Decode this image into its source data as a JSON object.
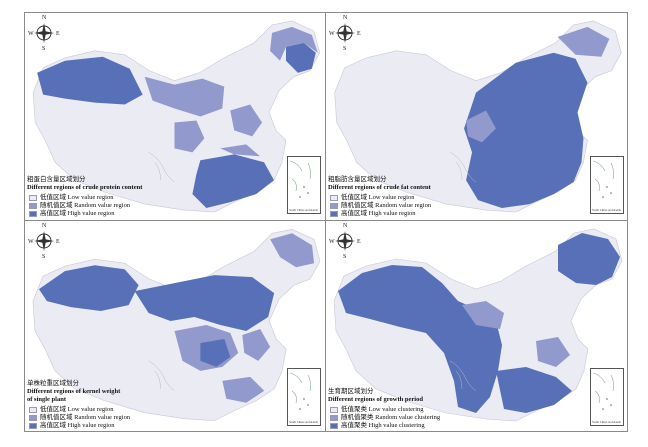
{
  "colors": {
    "low": "#ebebf4",
    "random": "#9299cc",
    "high": "#5870b8",
    "border": "#8a8a8a"
  },
  "compass": {
    "n": "N",
    "s": "S",
    "w": "W",
    "e": "E"
  },
  "inset_label": "South China sea Islands",
  "panels": [
    {
      "title_cn": "粗蛋白含量区域划分",
      "title_en": [
        "Different regions of crude protein content"
      ],
      "legend": [
        {
          "level": "low",
          "label": "低值区域 Low value region"
        },
        {
          "level": "random",
          "label": "随机值区域 Random value region"
        },
        {
          "level": "high",
          "label": "高值区域 High value region"
        }
      ]
    },
    {
      "title_cn": "粗脂肪含量区域划分",
      "title_en": [
        "Different regions of crude fat content"
      ],
      "legend": [
        {
          "level": "low",
          "label": "低值区域 Low value region"
        },
        {
          "level": "random",
          "label": "随机值区域 Random value region"
        },
        {
          "level": "high",
          "label": "高值区域 High value region"
        }
      ]
    },
    {
      "title_cn": "单株粒重区域划分",
      "title_en": [
        "Different regions of kernel weight",
        "of single plant"
      ],
      "legend": [
        {
          "level": "low",
          "label": "低值区域 Low value region"
        },
        {
          "level": "random",
          "label": "随机值区域 Random value region"
        },
        {
          "level": "high",
          "label": "高值区域 High value region"
        }
      ]
    },
    {
      "title_cn": "生育期区域划分",
      "title_en": [
        "Different regions of growth period"
      ],
      "legend": [
        {
          "level": "low",
          "label": "低值聚类 Low value clustering"
        },
        {
          "level": "random",
          "label": "随机值聚类 Random value clustering"
        },
        {
          "level": "high",
          "label": "高值聚类 High value clustering"
        }
      ]
    }
  ]
}
